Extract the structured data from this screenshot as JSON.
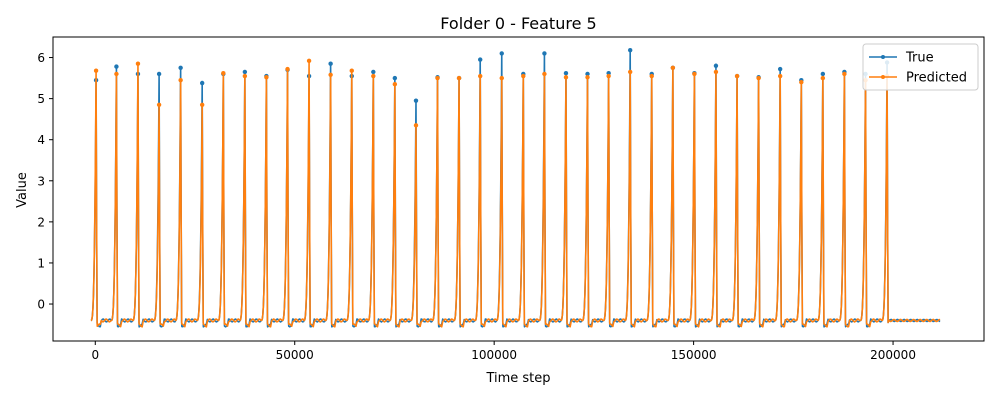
{
  "chart_data": {
    "type": "line",
    "title": "Folder 0 - Feature 5",
    "xlabel": "Time step",
    "ylabel": "Value",
    "xlim": [
      -10600,
      222800
    ],
    "ylim": [
      -0.9,
      6.5
    ],
    "x_ticks": [
      0,
      50000,
      100000,
      150000,
      200000
    ],
    "x_tick_labels": [
      "0",
      "50000",
      "100000",
      "150000",
      "200000"
    ],
    "y_ticks": [
      0,
      1,
      2,
      3,
      4,
      5,
      6
    ],
    "y_tick_labels": [
      "0",
      "1",
      "2",
      "3",
      "4",
      "5",
      "6"
    ],
    "grid": false,
    "legend_position": "top-right",
    "baseline": -0.4,
    "x_end": 212000,
    "peak_x": [
      200,
      5300,
      10700,
      16000,
      21400,
      26800,
      32100,
      37500,
      42900,
      48200,
      53600,
      59000,
      64300,
      69700,
      75100,
      80400,
      85800,
      91200,
      96500,
      101900,
      107300,
      112600,
      118000,
      123400,
      128700,
      134100,
      139500,
      144800,
      150200,
      155600,
      160900,
      166300,
      171700,
      177000,
      182400,
      187800,
      193100,
      198500
    ],
    "series": [
      {
        "name": "True",
        "color": "#1f77b4",
        "peaks": [
          5.45,
          5.78,
          5.6,
          5.6,
          5.75,
          5.38,
          5.6,
          5.65,
          5.55,
          5.7,
          5.55,
          5.85,
          5.55,
          5.65,
          5.5,
          4.95,
          5.52,
          5.5,
          5.95,
          6.1,
          5.6,
          6.1,
          5.62,
          5.6,
          5.62,
          6.18,
          5.6,
          5.75,
          5.62,
          5.8,
          5.55,
          5.52,
          5.72,
          5.45,
          5.6,
          5.65,
          5.6,
          5.88
        ]
      },
      {
        "name": "Predicted",
        "color": "#ff7f0e",
        "peaks": [
          5.68,
          5.6,
          5.85,
          4.85,
          5.45,
          4.85,
          5.62,
          5.55,
          5.52,
          5.72,
          5.92,
          5.58,
          5.68,
          5.55,
          5.35,
          4.35,
          5.5,
          5.5,
          5.55,
          5.5,
          5.55,
          5.6,
          5.52,
          5.52,
          5.55,
          5.65,
          5.55,
          5.75,
          5.6,
          5.65,
          5.55,
          5.5,
          5.55,
          5.4,
          5.5,
          5.6,
          5.45,
          5.55
        ]
      }
    ]
  }
}
